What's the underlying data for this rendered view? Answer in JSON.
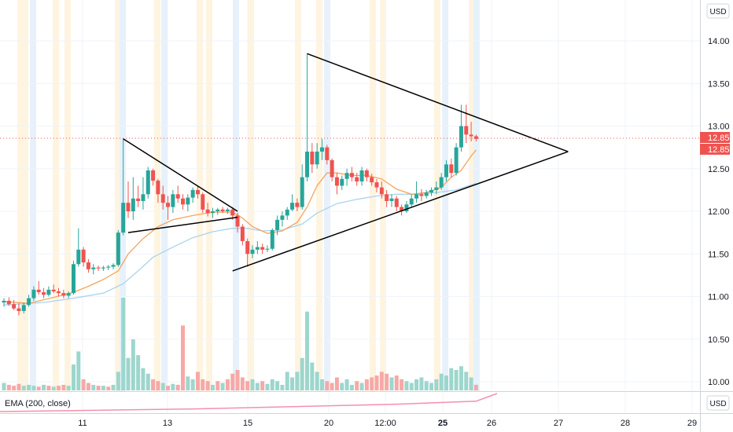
{
  "chart_data": {
    "type": "candlestick",
    "currency_labels": {
      "price_pane": "USD",
      "indicator_pane": "USD"
    },
    "price_axis": {
      "ticks": [
        "14.00",
        "13.50",
        "13.00",
        "12.50",
        "12.00",
        "11.50",
        "11.00",
        "10.50",
        "10.00"
      ]
    },
    "time_axis": {
      "ticks": [
        {
          "label": "11",
          "bold": false
        },
        {
          "label": "13",
          "bold": false
        },
        {
          "label": "15",
          "bold": false
        },
        {
          "label": "20",
          "bold": false
        },
        {
          "label": "12:00",
          "bold": false
        },
        {
          "label": "25",
          "bold": true
        },
        {
          "label": "26",
          "bold": false
        },
        {
          "label": "27",
          "bold": false
        },
        {
          "label": "28",
          "bold": false
        },
        {
          "label": "29",
          "bold": false
        }
      ]
    },
    "last_price": "12.85",
    "last_price_badges": [
      "12.85",
      "12.85"
    ],
    "indicator_label": "EMA (200, close)",
    "colors": {
      "up": "#26a69a",
      "down": "#ef5350",
      "ema_short": "#f7a35c",
      "ema_long": "#a9d4ef",
      "ema200": "#f48fb1",
      "trendline": "#000000"
    },
    "candles": [
      [
        10.93,
        10.98,
        10.88,
        10.95
      ],
      [
        10.95,
        10.99,
        10.89,
        10.91
      ],
      [
        10.91,
        10.96,
        10.84,
        10.86
      ],
      [
        10.86,
        10.92,
        10.78,
        10.83
      ],
      [
        10.83,
        10.93,
        10.8,
        10.9
      ],
      [
        10.9,
        11.02,
        10.88,
        10.98
      ],
      [
        10.98,
        11.12,
        10.95,
        11.08
      ],
      [
        11.08,
        11.18,
        11.02,
        11.05
      ],
      [
        11.05,
        11.1,
        10.98,
        11.02
      ],
      [
        11.02,
        11.12,
        11.0,
        11.08
      ],
      [
        11.08,
        11.14,
        11.04,
        11.06
      ],
      [
        11.06,
        11.1,
        11.0,
        11.04
      ],
      [
        11.04,
        11.08,
        10.98,
        11.01
      ],
      [
        11.01,
        11.06,
        10.98,
        11.04
      ],
      [
        11.04,
        11.42,
        11.02,
        11.38
      ],
      [
        11.38,
        11.8,
        11.35,
        11.55
      ],
      [
        11.55,
        11.58,
        11.35,
        11.4
      ],
      [
        11.4,
        11.44,
        11.28,
        11.32
      ],
      [
        11.32,
        11.38,
        11.26,
        11.34
      ],
      [
        11.34,
        11.36,
        11.3,
        11.33
      ],
      [
        11.33,
        11.36,
        11.3,
        11.34
      ],
      [
        11.34,
        11.37,
        11.31,
        11.35
      ],
      [
        11.35,
        11.39,
        11.32,
        11.37
      ],
      [
        11.37,
        11.78,
        11.35,
        11.75
      ],
      [
        11.75,
        12.85,
        11.72,
        12.1
      ],
      [
        12.1,
        12.35,
        11.92,
        12.0
      ],
      [
        12.0,
        12.4,
        11.9,
        12.15
      ],
      [
        12.15,
        12.3,
        12.05,
        12.12
      ],
      [
        12.12,
        12.4,
        12.02,
        12.2
      ],
      [
        12.2,
        12.52,
        12.15,
        12.48
      ],
      [
        12.48,
        12.5,
        12.3,
        12.36
      ],
      [
        12.36,
        12.38,
        12.1,
        12.2
      ],
      [
        12.2,
        12.3,
        12.02,
        12.1
      ],
      [
        12.1,
        12.18,
        11.9,
        12.05
      ],
      [
        12.05,
        12.25,
        11.98,
        12.2
      ],
      [
        12.2,
        12.3,
        12.1,
        12.15
      ],
      [
        12.15,
        12.2,
        12.02,
        12.08
      ],
      [
        12.08,
        12.2,
        12.0,
        12.16
      ],
      [
        12.16,
        12.28,
        12.1,
        12.25
      ],
      [
        12.25,
        12.3,
        12.15,
        12.2
      ],
      [
        12.2,
        12.22,
        11.98,
        12.02
      ],
      [
        12.02,
        12.1,
        11.94,
        11.98
      ],
      [
        11.98,
        12.04,
        11.92,
        12.0
      ],
      [
        12.0,
        12.04,
        11.96,
        12.02
      ],
      [
        12.02,
        12.05,
        11.98,
        12.0
      ],
      [
        12.0,
        12.04,
        11.97,
        12.02
      ],
      [
        12.02,
        12.05,
        11.9,
        11.95
      ],
      [
        11.95,
        11.98,
        11.75,
        11.82
      ],
      [
        11.82,
        11.85,
        11.6,
        11.65
      ],
      [
        11.65,
        11.68,
        11.35,
        11.5
      ],
      [
        11.5,
        11.6,
        11.45,
        11.55
      ],
      [
        11.55,
        11.65,
        11.5,
        11.58
      ],
      [
        11.58,
        11.62,
        11.5,
        11.55
      ],
      [
        11.55,
        11.6,
        11.52,
        11.56
      ],
      [
        11.56,
        11.8,
        11.54,
        11.78
      ],
      [
        11.78,
        11.95,
        11.72,
        11.9
      ],
      [
        11.9,
        12.0,
        11.82,
        11.95
      ],
      [
        11.95,
        12.05,
        11.9,
        12.02
      ],
      [
        12.02,
        12.2,
        12.0,
        12.1
      ],
      [
        12.1,
        12.15,
        12.0,
        12.05
      ],
      [
        12.05,
        12.55,
        12.02,
        12.4
      ],
      [
        12.4,
        13.85,
        12.35,
        12.7
      ],
      [
        12.7,
        12.8,
        12.45,
        12.55
      ],
      [
        12.55,
        12.8,
        12.5,
        12.7
      ],
      [
        12.7,
        12.85,
        12.6,
        12.75
      ],
      [
        12.75,
        12.78,
        12.55,
        12.6
      ],
      [
        12.6,
        12.62,
        12.35,
        12.4
      ],
      [
        12.4,
        12.45,
        12.2,
        12.3
      ],
      [
        12.3,
        12.42,
        12.25,
        12.38
      ],
      [
        12.38,
        12.5,
        12.3,
        12.45
      ],
      [
        12.45,
        12.52,
        12.35,
        12.4
      ],
      [
        12.4,
        12.45,
        12.3,
        12.35
      ],
      [
        12.35,
        12.52,
        12.3,
        12.48
      ],
      [
        12.48,
        12.5,
        12.35,
        12.4
      ],
      [
        12.4,
        12.44,
        12.3,
        12.34
      ],
      [
        12.34,
        12.38,
        12.22,
        12.28
      ],
      [
        12.28,
        12.35,
        12.15,
        12.2
      ],
      [
        12.2,
        12.25,
        12.05,
        12.12
      ],
      [
        12.12,
        12.2,
        12.05,
        12.15
      ],
      [
        12.15,
        12.18,
        12.0,
        12.05
      ],
      [
        12.05,
        12.08,
        11.95,
        12.0
      ],
      [
        12.0,
        12.12,
        11.98,
        12.08
      ],
      [
        12.08,
        12.2,
        12.05,
        12.15
      ],
      [
        12.15,
        12.35,
        12.1,
        12.2
      ],
      [
        12.2,
        12.26,
        12.12,
        12.18
      ],
      [
        12.18,
        12.25,
        12.15,
        12.22
      ],
      [
        12.22,
        12.28,
        12.18,
        12.25
      ],
      [
        12.25,
        12.35,
        12.2,
        12.28
      ],
      [
        12.28,
        12.45,
        12.25,
        12.4
      ],
      [
        12.4,
        12.6,
        12.35,
        12.55
      ],
      [
        12.55,
        12.62,
        12.4,
        12.45
      ],
      [
        12.45,
        12.8,
        12.42,
        12.75
      ],
      [
        12.75,
        13.25,
        12.7,
        13.0
      ],
      [
        13.0,
        13.25,
        12.8,
        12.9
      ],
      [
        12.9,
        13.05,
        12.82,
        12.88
      ],
      [
        12.88,
        12.9,
        12.82,
        12.85
      ]
    ],
    "volumes": [
      [
        1,
        0.08
      ],
      [
        0,
        0.06
      ],
      [
        0,
        0.05
      ],
      [
        0,
        0.07
      ],
      [
        1,
        0.05
      ],
      [
        1,
        0.06
      ],
      [
        1,
        0.05
      ],
      [
        0,
        0.04
      ],
      [
        1,
        0.06
      ],
      [
        0,
        0.05
      ],
      [
        1,
        0.04
      ],
      [
        0,
        0.05
      ],
      [
        0,
        0.06
      ],
      [
        1,
        0.05
      ],
      [
        1,
        0.28
      ],
      [
        1,
        0.42
      ],
      [
        0,
        0.12
      ],
      [
        0,
        0.08
      ],
      [
        1,
        0.06
      ],
      [
        0,
        0.05
      ],
      [
        1,
        0.05
      ],
      [
        0,
        0.04
      ],
      [
        1,
        0.06
      ],
      [
        1,
        0.2
      ],
      [
        1,
        1.0
      ],
      [
        1,
        0.35
      ],
      [
        1,
        0.55
      ],
      [
        1,
        0.38
      ],
      [
        1,
        0.24
      ],
      [
        1,
        0.18
      ],
      [
        0,
        0.12
      ],
      [
        0,
        0.1
      ],
      [
        1,
        0.08
      ],
      [
        0,
        0.05
      ],
      [
        1,
        0.07
      ],
      [
        0,
        0.06
      ],
      [
        0,
        0.7
      ],
      [
        1,
        0.15
      ],
      [
        1,
        0.12
      ],
      [
        0,
        0.2
      ],
      [
        0,
        0.12
      ],
      [
        0,
        0.1
      ],
      [
        1,
        0.06
      ],
      [
        0,
        0.1
      ],
      [
        1,
        0.08
      ],
      [
        0,
        0.12
      ],
      [
        0,
        0.18
      ],
      [
        0,
        0.22
      ],
      [
        0,
        0.14
      ],
      [
        0,
        0.1
      ],
      [
        1,
        0.12
      ],
      [
        1,
        0.08
      ],
      [
        0,
        0.1
      ],
      [
        1,
        0.07
      ],
      [
        1,
        0.12
      ],
      [
        1,
        0.1
      ],
      [
        1,
        0.06
      ],
      [
        1,
        0.2
      ],
      [
        1,
        0.14
      ],
      [
        1,
        0.2
      ],
      [
        1,
        0.35
      ],
      [
        1,
        0.85
      ],
      [
        1,
        0.3
      ],
      [
        1,
        0.2
      ],
      [
        1,
        0.12
      ],
      [
        0,
        0.1
      ],
      [
        0,
        0.08
      ],
      [
        0,
        0.14
      ],
      [
        1,
        0.08
      ],
      [
        1,
        0.12
      ],
      [
        1,
        0.06
      ],
      [
        0,
        0.1
      ],
      [
        1,
        0.08
      ],
      [
        0,
        0.12
      ],
      [
        0,
        0.14
      ],
      [
        0,
        0.16
      ],
      [
        0,
        0.2
      ],
      [
        0,
        0.18
      ],
      [
        1,
        0.14
      ],
      [
        0,
        0.16
      ],
      [
        0,
        0.12
      ],
      [
        1,
        0.1
      ],
      [
        1,
        0.08
      ],
      [
        1,
        0.12
      ],
      [
        1,
        0.14
      ],
      [
        1,
        0.1
      ],
      [
        1,
        0.08
      ],
      [
        1,
        0.12
      ],
      [
        1,
        0.18
      ],
      [
        1,
        0.16
      ],
      [
        1,
        0.24
      ],
      [
        1,
        0.22
      ],
      [
        1,
        0.26
      ],
      [
        1,
        0.2
      ],
      [
        1,
        0.14
      ],
      [
        0,
        0.06
      ]
    ],
    "ema_short": [
      [
        0,
        10.94
      ],
      [
        5,
        10.92
      ],
      [
        10,
        10.99
      ],
      [
        14,
        11.05
      ],
      [
        17,
        11.12
      ],
      [
        20,
        11.2
      ],
      [
        23,
        11.3
      ],
      [
        25,
        11.5
      ],
      [
        28,
        11.68
      ],
      [
        31,
        11.82
      ],
      [
        34,
        11.9
      ],
      [
        38,
        11.95
      ],
      [
        42,
        11.99
      ],
      [
        46,
        11.99
      ],
      [
        48,
        11.92
      ],
      [
        50,
        11.82
      ],
      [
        53,
        11.74
      ],
      [
        56,
        11.77
      ],
      [
        59,
        11.87
      ],
      [
        61,
        12.05
      ],
      [
        63,
        12.3
      ],
      [
        65,
        12.45
      ],
      [
        67,
        12.45
      ],
      [
        70,
        12.42
      ],
      [
        73,
        12.42
      ],
      [
        76,
        12.38
      ],
      [
        79,
        12.26
      ],
      [
        82,
        12.2
      ],
      [
        85,
        12.22
      ],
      [
        88,
        12.28
      ],
      [
        90,
        12.4
      ],
      [
        92,
        12.48
      ],
      [
        94,
        12.65
      ],
      [
        95,
        12.72
      ]
    ],
    "ema_long": [
      [
        0,
        10.9
      ],
      [
        8,
        10.93
      ],
      [
        14,
        10.98
      ],
      [
        20,
        11.04
      ],
      [
        24,
        11.15
      ],
      [
        27,
        11.3
      ],
      [
        30,
        11.46
      ],
      [
        34,
        11.58
      ],
      [
        38,
        11.69
      ],
      [
        42,
        11.76
      ],
      [
        46,
        11.8
      ],
      [
        49,
        11.8
      ],
      [
        52,
        11.77
      ],
      [
        56,
        11.78
      ],
      [
        60,
        11.85
      ],
      [
        63,
        11.98
      ],
      [
        67,
        12.09
      ],
      [
        71,
        12.14
      ],
      [
        75,
        12.18
      ],
      [
        79,
        12.2
      ],
      [
        83,
        12.2
      ],
      [
        87,
        12.22
      ],
      [
        91,
        12.25
      ],
      [
        95,
        12.33
      ]
    ],
    "ema200": [
      [
        0,
        0.0
      ],
      [
        40,
        0.15
      ],
      [
        80,
        0.4
      ],
      [
        95,
        0.55
      ]
    ],
    "trendlines": [
      {
        "from": [
          24,
          12.85
        ],
        "to": [
          47,
          12.0
        ]
      },
      {
        "from": [
          25,
          11.75
        ],
        "to": [
          47,
          11.93
        ]
      },
      {
        "from": [
          61,
          13.85
        ],
        "to": [
          113.5,
          12.7
        ]
      },
      {
        "from": [
          46,
          11.3
        ],
        "to": [
          113.5,
          12.7
        ]
      }
    ]
  }
}
